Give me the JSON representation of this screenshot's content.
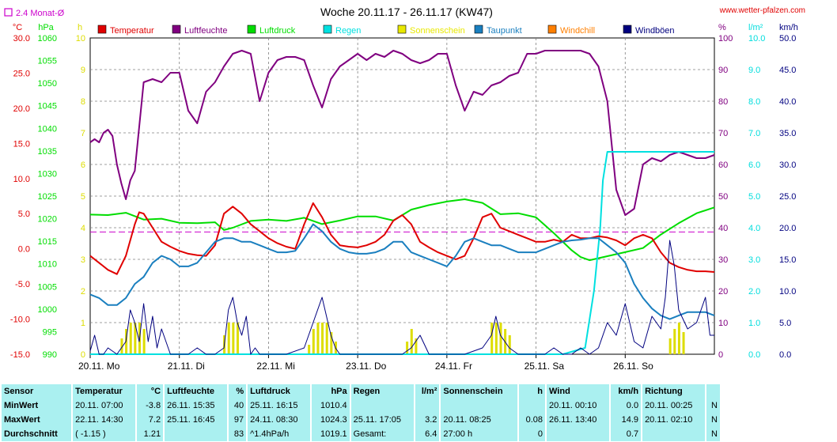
{
  "header": {
    "title": "Woche 20.11.17 - 26.11.17 (KW47)",
    "site": "www.wetter-pfalzen.com",
    "mean_label": "2.4 Monat-Ø"
  },
  "chart_data": {
    "type": "line",
    "title": "Woche 20.11.17 - 26.11.17 (KW47)",
    "x": {
      "tick_labels": [
        "20.11. Mo",
        "21.11. Di",
        "22.11. Mi",
        "23.11. Do",
        "24.11. Fr",
        "25.11. Sa",
        "26.11. So"
      ],
      "days": 7
    },
    "axes": {
      "temp": {
        "unit": "°C",
        "min": -15,
        "max": 30,
        "step": 5,
        "color": "#e00000",
        "labels": [
          "30.0",
          "25.0",
          "20.0",
          "15.0",
          "10.0",
          "5.0",
          "0.0",
          "-5.0",
          "-10.0",
          "-15.0"
        ]
      },
      "pressure": {
        "unit": "hPa",
        "min": 990,
        "max": 1060,
        "step": 5,
        "color": "#00dd00",
        "labels": [
          "1060",
          "1055",
          "1050",
          "1045",
          "1040",
          "1035",
          "1030",
          "1025",
          "1020",
          "1015",
          "1010",
          "1005",
          "1000",
          "995",
          "990"
        ]
      },
      "sunshine": {
        "unit": "h",
        "min": 0,
        "max": 10,
        "step": 1,
        "color": "#dddd00",
        "labels": [
          "10",
          "9",
          "8",
          "7",
          "6",
          "5",
          "4",
          "3",
          "2",
          "1",
          "0"
        ]
      },
      "humidity": {
        "unit": "%",
        "min": 0,
        "max": 100,
        "step": 10,
        "color": "#800080",
        "labels": [
          "100",
          "90",
          "80",
          "70",
          "60",
          "50",
          "40",
          "30",
          "20",
          "10",
          "0"
        ]
      },
      "rain": {
        "unit": "l/m²",
        "min": 0,
        "max": 10,
        "step": 1,
        "color": "#00dddd",
        "labels": [
          "10.0",
          "9.0",
          "8.0",
          "7.0",
          "6.0",
          "5.0",
          "4.0",
          "3.0",
          "2.0",
          "1.0",
          "0.0"
        ]
      },
      "wind": {
        "unit": "km/h",
        "min": 0,
        "max": 50,
        "step": 5,
        "color": "#000080",
        "labels": [
          "50.0",
          "45.0",
          "40.0",
          "35.0",
          "30.0",
          "25.0",
          "20.0",
          "15.0",
          "10.0",
          "5.0",
          "0.0"
        ]
      }
    },
    "legend": [
      {
        "name": "Temperatur",
        "color": "#e00000"
      },
      {
        "name": "Luftfeuchte",
        "color": "#800080"
      },
      {
        "name": "Luftdruck",
        "color": "#00dd00"
      },
      {
        "name": "Regen",
        "color": "#00e0e0"
      },
      {
        "name": "Sonnenschein",
        "color": "#e8e800"
      },
      {
        "name": "Taupunkt",
        "color": "#1a7fbf"
      },
      {
        "name": "Windchill",
        "color": "#ff7f00"
      },
      {
        "name": "Windböen",
        "color": "#00007f"
      }
    ],
    "month_mean_temp": 2.4,
    "series": [
      {
        "name": "Luftfeuchte",
        "axis": "humidity",
        "color": "#800080",
        "x": [
          0,
          0.05,
          0.1,
          0.15,
          0.2,
          0.25,
          0.3,
          0.35,
          0.4,
          0.45,
          0.5,
          0.6,
          0.7,
          0.8,
          0.9,
          1.0,
          1.1,
          1.2,
          1.3,
          1.4,
          1.5,
          1.6,
          1.7,
          1.8,
          1.9,
          2.0,
          2.1,
          2.2,
          2.3,
          2.4,
          2.5,
          2.6,
          2.7,
          2.8,
          2.9,
          3.0,
          3.1,
          3.2,
          3.3,
          3.4,
          3.5,
          3.6,
          3.7,
          3.8,
          3.9,
          4.0,
          4.1,
          4.2,
          4.3,
          4.4,
          4.5,
          4.6,
          4.7,
          4.8,
          4.9,
          5.0,
          5.1,
          5.2,
          5.3,
          5.4,
          5.5,
          5.6,
          5.7,
          5.8,
          5.9,
          6.0,
          6.1,
          6.2,
          6.3,
          6.4,
          6.5,
          6.6,
          6.7,
          6.8,
          6.9,
          7.0
        ],
        "y": [
          67,
          68,
          67,
          70,
          71,
          69,
          60,
          54,
          49,
          55,
          58,
          86,
          87,
          86,
          89,
          89,
          77,
          73,
          83,
          86,
          91,
          95,
          96,
          95,
          80,
          89,
          93,
          94,
          94,
          93,
          85,
          78,
          87,
          91,
          93,
          95,
          93,
          95,
          94,
          96,
          95,
          93,
          92,
          93,
          95,
          95,
          85,
          77,
          83,
          82,
          85,
          86,
          88,
          89,
          95,
          95,
          96,
          96,
          96,
          96,
          96,
          95,
          91,
          80,
          52,
          44,
          46,
          60,
          62,
          61,
          63,
          64,
          63,
          62,
          62,
          63
        ]
      },
      {
        "name": "Luftdruck",
        "axis": "pressure",
        "color": "#00dd00",
        "x": [
          0,
          0.2,
          0.4,
          0.6,
          0.8,
          1.0,
          1.2,
          1.4,
          1.5,
          1.6,
          1.8,
          2.0,
          2.2,
          2.4,
          2.6,
          2.8,
          3.0,
          3.2,
          3.4,
          3.6,
          3.8,
          4.0,
          4.2,
          4.4,
          4.6,
          4.8,
          5.0,
          5.2,
          5.4,
          5.5,
          5.6,
          5.8,
          6.0,
          6.2,
          6.4,
          6.6,
          6.8,
          7.0
        ],
        "y": [
          1020.9,
          1020.8,
          1021.3,
          1019.8,
          1020.0,
          1019.1,
          1019.0,
          1019.2,
          1017.5,
          1018.0,
          1019.5,
          1019.8,
          1019.5,
          1020.2,
          1018.8,
          1019.6,
          1020.5,
          1020.5,
          1019.6,
          1022.0,
          1023.0,
          1023.8,
          1024.3,
          1023.5,
          1021.0,
          1021.2,
          1020.3,
          1016.8,
          1013.0,
          1011.5,
          1010.8,
          1011.7,
          1012.6,
          1013.5,
          1016.5,
          1019.0,
          1021.2,
          1022.5
        ]
      },
      {
        "name": "Regen",
        "axis": "rain",
        "color": "#00e0e0",
        "x": [
          0,
          5.0,
          5.3,
          5.55,
          5.65,
          5.72,
          5.75,
          5.8,
          6.0,
          6.5,
          7.0
        ],
        "y": [
          0,
          0,
          0,
          0.2,
          2.0,
          4.0,
          5.5,
          6.4,
          6.4,
          6.4,
          6.4
        ]
      },
      {
        "name": "Temperatur",
        "axis": "temp",
        "color": "#e00000",
        "x": [
          0,
          0.1,
          0.2,
          0.3,
          0.4,
          0.5,
          0.55,
          0.6,
          0.7,
          0.8,
          0.9,
          1.0,
          1.1,
          1.2,
          1.3,
          1.4,
          1.5,
          1.6,
          1.7,
          1.8,
          1.9,
          2.0,
          2.1,
          2.2,
          2.3,
          2.4,
          2.5,
          2.6,
          2.7,
          2.8,
          2.9,
          3.0,
          3.1,
          3.2,
          3.3,
          3.4,
          3.5,
          3.6,
          3.7,
          3.8,
          3.9,
          4.0,
          4.1,
          4.2,
          4.3,
          4.4,
          4.5,
          4.6,
          4.7,
          4.8,
          4.9,
          5.0,
          5.1,
          5.2,
          5.3,
          5.4,
          5.5,
          5.6,
          5.7,
          5.8,
          5.9,
          6.0,
          6.1,
          6.2,
          6.3,
          6.4,
          6.5,
          6.6,
          6.7,
          6.8,
          6.9,
          7.0
        ],
        "y": [
          -1.0,
          -2.0,
          -3.0,
          -3.6,
          -1.0,
          3.5,
          5.2,
          5.0,
          3.0,
          1.0,
          0.3,
          -0.3,
          -0.7,
          -0.9,
          -1.0,
          0.5,
          5.0,
          6.0,
          5.0,
          3.5,
          2.5,
          1.5,
          0.8,
          0.3,
          0.0,
          3.5,
          6.5,
          4.5,
          2.0,
          0.5,
          0.3,
          0.2,
          0.5,
          1.0,
          2.0,
          4.0,
          4.8,
          3.5,
          1.0,
          0.2,
          -0.5,
          -1.0,
          -1.5,
          -1.0,
          1.5,
          4.5,
          5.0,
          3.0,
          2.5,
          2.0,
          1.5,
          1.0,
          1.0,
          1.3,
          1.0,
          2.0,
          1.5,
          1.5,
          1.8,
          1.6,
          1.2,
          0.5,
          1.5,
          2.0,
          1.5,
          -0.5,
          -2.0,
          -2.6,
          -3.0,
          -3.2,
          -3.2,
          -3.3
        ]
      },
      {
        "name": "Taupunkt",
        "axis": "temp",
        "color": "#1a7fbf",
        "x": [
          0,
          0.1,
          0.2,
          0.3,
          0.4,
          0.5,
          0.6,
          0.7,
          0.8,
          0.9,
          1.0,
          1.1,
          1.2,
          1.3,
          1.4,
          1.5,
          1.6,
          1.7,
          1.8,
          1.9,
          2.0,
          2.1,
          2.2,
          2.3,
          2.4,
          2.5,
          2.6,
          2.7,
          2.8,
          2.9,
          3.0,
          3.1,
          3.2,
          3.3,
          3.4,
          3.5,
          3.6,
          3.7,
          3.8,
          3.9,
          4.0,
          4.1,
          4.2,
          4.3,
          4.4,
          4.5,
          4.6,
          4.7,
          4.8,
          4.9,
          5.0,
          5.1,
          5.2,
          5.3,
          5.4,
          5.5,
          5.6,
          5.7,
          5.8,
          5.9,
          6.0,
          6.1,
          6.2,
          6.3,
          6.4,
          6.5,
          6.6,
          6.7,
          6.8,
          6.9,
          7.0
        ],
        "y": [
          -6.5,
          -7.0,
          -8.0,
          -8.0,
          -7.0,
          -5.0,
          -4.0,
          -2.0,
          -1.0,
          -1.5,
          -2.5,
          -2.5,
          -2.0,
          -0.5,
          1.0,
          1.5,
          1.5,
          1.0,
          1.0,
          0.5,
          0.0,
          -0.5,
          -0.5,
          -0.3,
          1.5,
          3.5,
          2.5,
          1.0,
          0.0,
          -0.5,
          -0.7,
          -0.7,
          -0.5,
          0.0,
          1.0,
          1.0,
          -0.5,
          -1.0,
          -1.5,
          -2.0,
          -2.5,
          -1.0,
          1.0,
          1.5,
          1.0,
          0.5,
          0.5,
          0.0,
          -0.5,
          -0.5,
          -0.5,
          0.0,
          0.5,
          1.0,
          1.2,
          1.3,
          1.5,
          1.5,
          0.5,
          -0.5,
          -2.0,
          -5.0,
          -7.0,
          -8.5,
          -9.5,
          -10.0,
          -9.5,
          -9.0,
          -9.0,
          -9.0,
          -9.5
        ]
      },
      {
        "name": "Windböen",
        "axis": "wind",
        "color": "#00007f",
        "x": [
          0,
          0.05,
          0.1,
          0.15,
          0.2,
          0.3,
          0.4,
          0.45,
          0.5,
          0.55,
          0.6,
          0.65,
          0.7,
          0.75,
          0.8,
          0.85,
          0.9,
          1.0,
          1.1,
          1.2,
          1.3,
          1.4,
          1.5,
          1.55,
          1.6,
          1.65,
          1.7,
          1.75,
          1.8,
          1.85,
          1.9,
          2.0,
          2.2,
          2.4,
          2.5,
          2.6,
          2.7,
          2.75,
          2.8,
          2.9,
          3.0,
          3.2,
          3.4,
          3.5,
          3.6,
          3.7,
          3.8,
          4.0,
          4.2,
          4.4,
          4.5,
          4.55,
          4.6,
          4.7,
          4.8,
          4.9,
          5.0,
          5.1,
          5.2,
          5.3,
          5.4,
          5.5,
          5.6,
          5.7,
          5.8,
          5.9,
          6.0,
          6.1,
          6.2,
          6.3,
          6.4,
          6.45,
          6.5,
          6.55,
          6.6,
          6.7,
          6.8,
          6.9,
          6.95,
          7.0
        ],
        "y": [
          0.5,
          3,
          0,
          0,
          1,
          0,
          2,
          7,
          5,
          2,
          8,
          2,
          6,
          1,
          4,
          2,
          0,
          0,
          0,
          1,
          0,
          0,
          1,
          7,
          9,
          5,
          3,
          6,
          0,
          1,
          0,
          0,
          0,
          1,
          5,
          9,
          3,
          1,
          0,
          0,
          0,
          0,
          0,
          0,
          1,
          3,
          0,
          0,
          0,
          1,
          3,
          6,
          3,
          1,
          0,
          0,
          0,
          0,
          1,
          0,
          0,
          1,
          0,
          1,
          5,
          3,
          8,
          2,
          1,
          6,
          4,
          9,
          18,
          14,
          7,
          4,
          5,
          9,
          3,
          3
        ]
      }
    ],
    "sunshine_bars": [
      {
        "x": 0.35,
        "h": 0.5
      },
      {
        "x": 0.4,
        "h": 0.8
      },
      {
        "x": 0.45,
        "h": 1.0
      },
      {
        "x": 0.5,
        "h": 1.0
      },
      {
        "x": 0.55,
        "h": 1.0
      },
      {
        "x": 0.6,
        "h": 0.8
      },
      {
        "x": 1.5,
        "h": 0.6
      },
      {
        "x": 1.55,
        "h": 1.0
      },
      {
        "x": 1.6,
        "h": 1.0
      },
      {
        "x": 1.65,
        "h": 1.0
      },
      {
        "x": 2.45,
        "h": 0.3
      },
      {
        "x": 2.5,
        "h": 0.8
      },
      {
        "x": 2.55,
        "h": 1.0
      },
      {
        "x": 2.6,
        "h": 1.0
      },
      {
        "x": 2.65,
        "h": 1.0
      },
      {
        "x": 2.7,
        "h": 0.7
      },
      {
        "x": 2.75,
        "h": 0.4
      },
      {
        "x": 3.55,
        "h": 0.4
      },
      {
        "x": 3.6,
        "h": 0.8
      },
      {
        "x": 3.65,
        "h": 0.5
      },
      {
        "x": 4.5,
        "h": 1.0
      },
      {
        "x": 4.55,
        "h": 1.0
      },
      {
        "x": 4.6,
        "h": 1.0
      },
      {
        "x": 4.65,
        "h": 0.8
      },
      {
        "x": 4.7,
        "h": 0.6
      },
      {
        "x": 6.5,
        "h": 0.5
      },
      {
        "x": 6.55,
        "h": 0.8
      },
      {
        "x": 6.6,
        "h": 1.0
      },
      {
        "x": 6.65,
        "h": 0.7
      }
    ]
  },
  "table": {
    "headers": {
      "sensor": "Sensor",
      "temp": "Temperatur",
      "temp_unit": "°C",
      "hum": "Luftfeuchte",
      "hum_unit": "%",
      "press": "Luftdruck",
      "press_unit": "hPa",
      "rain": "Regen",
      "rain_unit": "l/m²",
      "sun": "Sonnenschein",
      "sun_unit": "h",
      "wind": "Wind",
      "wind_unit": "km/h",
      "dir": "Richtung"
    },
    "rows": [
      {
        "label": "MinWert",
        "temp_time": "20.11. 07:00",
        "temp_val": "-3.8",
        "hum_time": "26.11. 15:35",
        "hum_val": "40",
        "press_time": "25.11. 16:15",
        "press_val": "1010.4",
        "rain_time": "",
        "rain_val": "",
        "sun_time": "",
        "sun_val": "",
        "wind_time": "20.11. 00:10",
        "wind_val": "0.0",
        "dir_time": "20.11. 00:25",
        "dir_val": "N"
      },
      {
        "label": "MaxWert",
        "temp_time": "22.11. 14:30",
        "temp_val": "7.2",
        "hum_time": "25.11. 16:45",
        "hum_val": "97",
        "press_time": "24.11. 08:30",
        "press_val": "1024.3",
        "rain_time": "25.11. 17:05",
        "rain_val": "3.2",
        "sun_time": "20.11. 08:25",
        "sun_val": "0.08",
        "wind_time": "26.11. 13:40",
        "wind_val": "14.9",
        "dir_time": "20.11. 02:10",
        "dir_val": "N"
      },
      {
        "label": "Durchschnitt",
        "temp_time": "( -1.15 )",
        "temp_val": "1.21",
        "hum_time": "",
        "hum_val": "83",
        "press_time": "^1.4hPa/h",
        "press_val": "1019.1",
        "rain_time": "Gesamt:",
        "rain_val": "6.4",
        "sun_time": "27:00 h",
        "sun_val": "0",
        "wind_time": "",
        "wind_val": "0.7",
        "dir_time": "",
        "dir_val": "N"
      }
    ]
  }
}
